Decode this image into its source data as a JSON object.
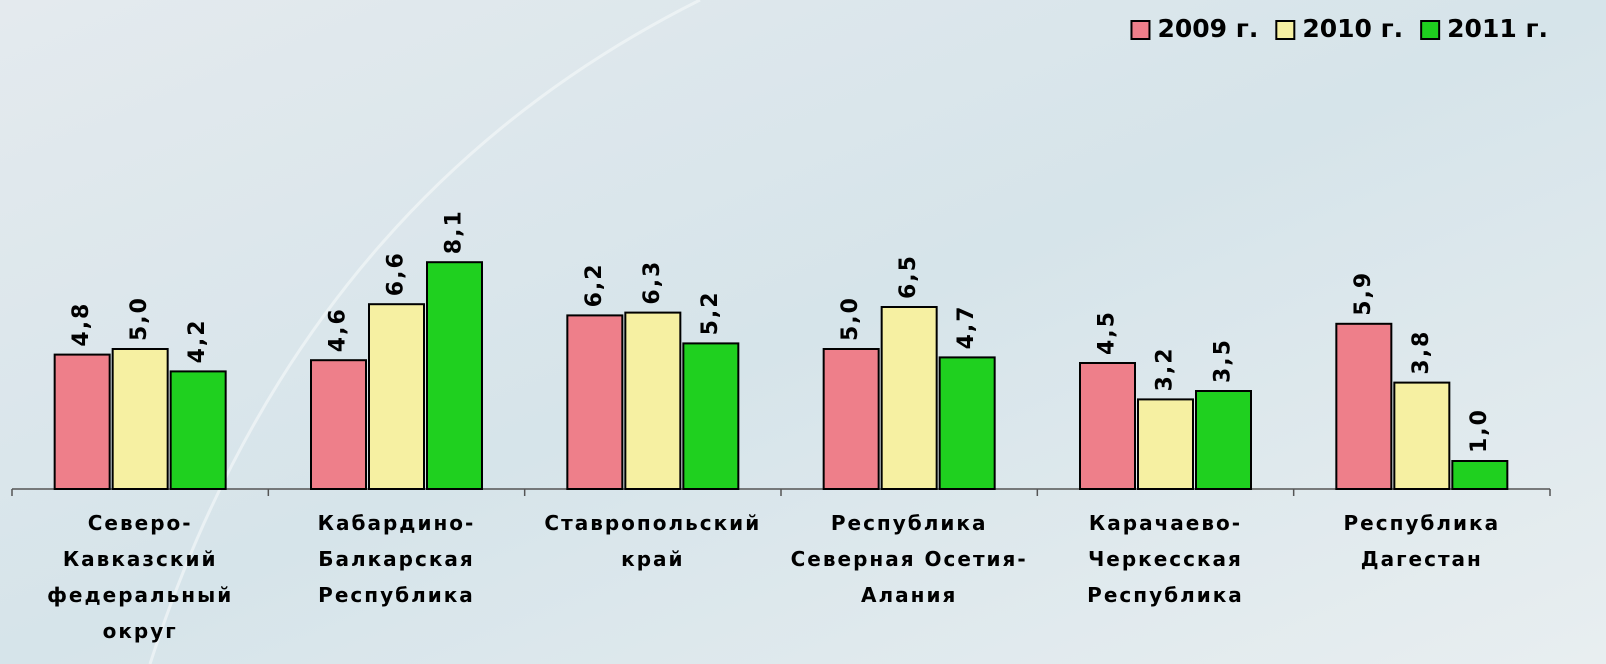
{
  "chart_data": {
    "type": "bar",
    "categories": [
      "Северо-\nКавказский\nфедеральный\nокруг",
      "Кабардино-\nБалкарская\nРеспублика",
      "Ставропольский\nкрай",
      "Республика\nСеверная Осетия-\nАлания",
      "Карачаево-\nЧеркесская\nРеспублика",
      "Республика\nДагестан"
    ],
    "series": [
      {
        "name": "2009 г.",
        "color": "#ee7f8a",
        "values": [
          4.8,
          4.6,
          6.2,
          5.0,
          4.5,
          5.9
        ],
        "value_labels": [
          "4,8",
          "4,6",
          "6,2",
          "5,0",
          "4,5",
          "5,9"
        ]
      },
      {
        "name": "2010 г.",
        "color": "#f6f0a2",
        "values": [
          5.0,
          6.6,
          6.3,
          6.5,
          3.2,
          3.8
        ],
        "value_labels": [
          "5,0",
          "6,6",
          "6,3",
          "6,5",
          "3,2",
          "3,8"
        ]
      },
      {
        "name": "2011 г.",
        "color": "#1fd01f",
        "values": [
          4.2,
          8.1,
          5.2,
          4.7,
          3.5,
          1.0
        ],
        "value_labels": [
          "4,2",
          "8,1",
          "5,2",
          "4,7",
          "3,5",
          "1,0"
        ]
      }
    ],
    "ylim": [
      0,
      10
    ],
    "legend": "top-right"
  }
}
